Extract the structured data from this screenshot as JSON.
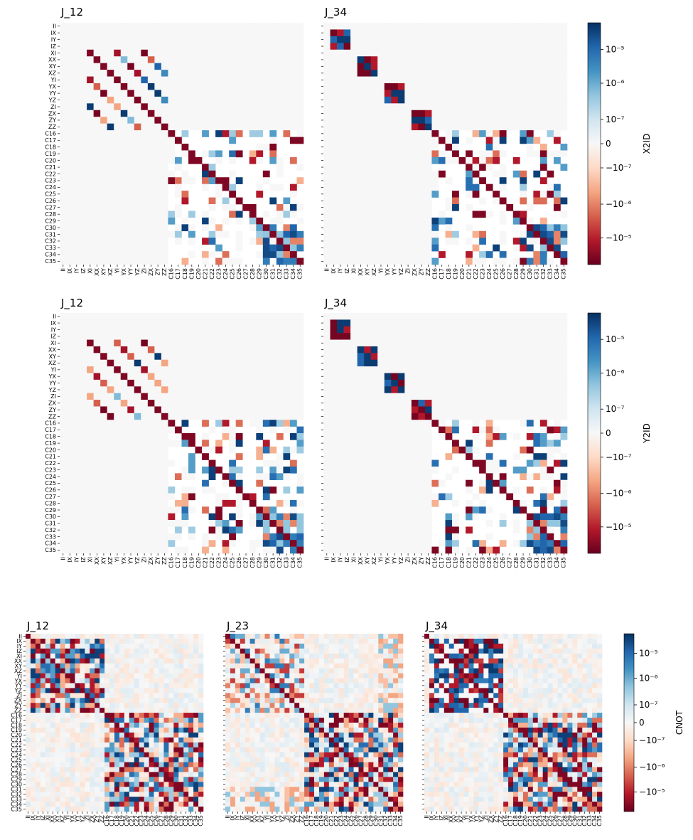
{
  "chart_data": [
    {
      "type": "heatmap",
      "title": "J_12",
      "colorbar_label": "X2ID",
      "pattern": "x2id_j12",
      "seed": 11,
      "show_ylabels": true
    },
    {
      "type": "heatmap",
      "title": "J_34",
      "colorbar_label": "X2ID",
      "pattern": "x2id_j34",
      "seed": 23,
      "show_ylabels": false
    },
    {
      "type": "heatmap",
      "title": "J_12",
      "colorbar_label": "Y2ID",
      "pattern": "y2id_j12",
      "seed": 37,
      "show_ylabels": true
    },
    {
      "type": "heatmap",
      "title": "J_34",
      "colorbar_label": "Y2ID",
      "pattern": "y2id_j34",
      "seed": 41,
      "show_ylabels": false
    },
    {
      "type": "heatmap",
      "title": "J_12",
      "colorbar_label": "CNOT",
      "pattern": "cnot_j12",
      "seed": 53,
      "show_ylabels": true
    },
    {
      "type": "heatmap",
      "title": "J_23",
      "colorbar_label": "CNOT",
      "pattern": "cnot_j23",
      "seed": 67,
      "show_ylabels": false
    },
    {
      "type": "heatmap",
      "title": "J_34",
      "colorbar_label": "CNOT",
      "pattern": "cnot_j34",
      "seed": 79,
      "show_ylabels": false
    }
  ],
  "tick_labels": [
    "II",
    "IX",
    "IY",
    "IZ",
    "XI",
    "XX",
    "XY",
    "XZ",
    "YI",
    "YX",
    "YY",
    "YZ",
    "ZI",
    "ZX",
    "ZY",
    "ZZ",
    "C16",
    "C17",
    "C18",
    "C19",
    "C20",
    "C21",
    "C22",
    "C23",
    "C24",
    "C25",
    "C26",
    "C27",
    "C28",
    "C29",
    "C30",
    "C31",
    "C32",
    "C33",
    "C34",
    "C35"
  ],
  "tick_labels_shown": [
    "II",
    "IX",
    "IY",
    "IZ",
    "XI",
    "XX",
    "XY",
    "XZ",
    "YI",
    "YX",
    "YY",
    "YZ",
    "ZI",
    "ZX",
    "ZY",
    "ZZ",
    "C16",
    "C17",
    "C18",
    "C19",
    "C20",
    "C21",
    "C22",
    "C23",
    "C24",
    "C25",
    "C26",
    "C27",
    "C28",
    "C29",
    "C30",
    "C31",
    "C32",
    "C33",
    "C34",
    "C35"
  ],
  "colorbars": [
    {
      "label": "X2ID",
      "ticks": [
        "10⁻⁵",
        "10⁻⁶",
        "10⁻⁷",
        "0",
        "−10⁻⁷",
        "−10⁻⁶",
        "−10⁻⁵"
      ]
    },
    {
      "label": "Y2ID",
      "ticks": [
        "10⁻⁵",
        "10⁻⁶",
        "10⁻⁷",
        "0",
        "−10⁻⁷",
        "−10⁻⁶",
        "−10⁻⁵"
      ]
    },
    {
      "label": "CNOT",
      "ticks": [
        "10⁻⁵",
        "10⁻⁶",
        "10⁻⁷",
        "0",
        "−10⁻⁷",
        "−10⁻⁶",
        "−10⁻⁵"
      ]
    }
  ],
  "colors": {
    "cmap": [
      "#67001f",
      "#b2182b",
      "#d6604d",
      "#f4a582",
      "#fddbc7",
      "#f7f7f7",
      "#d1e5f0",
      "#92c5de",
      "#4393c3",
      "#2166ac",
      "#053061"
    ],
    "masked_background": "#ffffff",
    "zero": "#f7f7f7"
  }
}
